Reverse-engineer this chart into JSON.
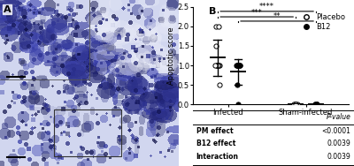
{
  "ylabel": "Apoptotic score",
  "x_categories": [
    "Infected",
    "Sham-infected"
  ],
  "placebo_infected": [
    2.0,
    2.0,
    1.5,
    1.0,
    1.0,
    1.0,
    1.0,
    1.0,
    1.0,
    0.5
  ],
  "b12_infected": [
    1.0,
    1.0,
    1.0,
    1.0,
    1.0,
    1.0,
    1.0,
    0.5,
    0.0
  ],
  "placebo_sham": [
    0.0,
    0.0,
    0.0,
    0.0,
    0.0
  ],
  "b12_sham": [
    0.0,
    0.0,
    0.0,
    0.0,
    0.0
  ],
  "ylim": [
    0.0,
    2.5
  ],
  "yticks": [
    0.0,
    0.5,
    1.0,
    1.5,
    2.0,
    2.5
  ],
  "table_rows": [
    {
      "label": "PM effect",
      "value": "<0.0001"
    },
    {
      "label": "B12 effect",
      "value": "0.0039"
    },
    {
      "label": "Interaction",
      "value": "0.0039"
    }
  ],
  "table_header": "P-value",
  "background_color": "white",
  "jitter_seed": 42,
  "panel_A_bg": "#dde4f0",
  "panel_A_dark": "#5566aa",
  "panel_A_mid": "#99aacc",
  "panel_A_light": "#eef0f8"
}
